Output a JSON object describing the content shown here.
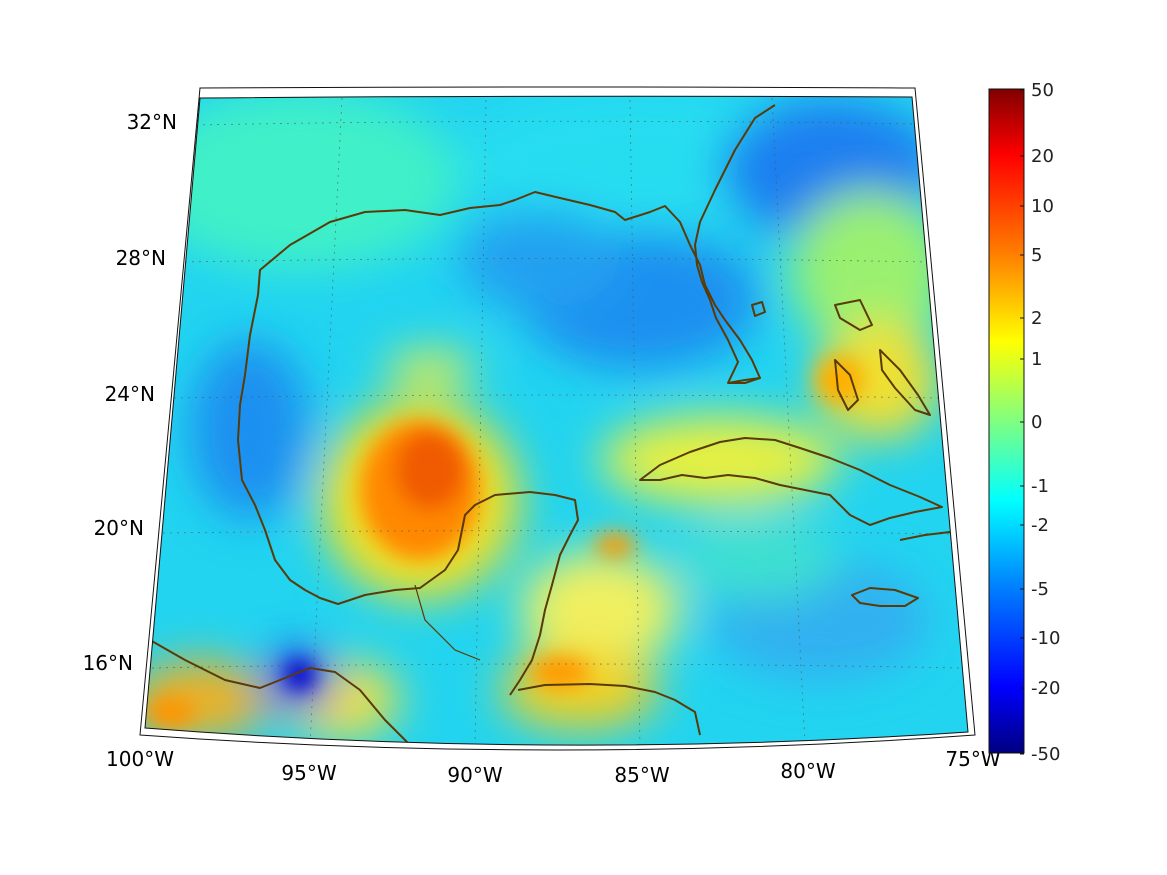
{
  "map": {
    "lon_labels": [
      "100°W",
      "95°W",
      "90°W",
      "85°W",
      "80°W",
      "75°W"
    ],
    "lat_labels": [
      "32°N",
      "28°N",
      "24°N",
      "20°N",
      "16°N"
    ],
    "region": "Gulf of Mexico and Caribbean",
    "coastline_color": "#5a3a08",
    "gridlines": "dotted"
  },
  "colorbar": {
    "colormap": "jet",
    "scale": "nonlinear",
    "tick_labels": [
      "50",
      "20",
      "10",
      "5",
      "2",
      "1",
      "0",
      "-1",
      "-2",
      "-5",
      "-10",
      "-20",
      "-50"
    ],
    "colors": [
      "#800000",
      "#ff0000",
      "#ff8000",
      "#ffff00",
      "#80ff80",
      "#00ffff",
      "#0080ff",
      "#0000ff",
      "#000080"
    ]
  }
}
